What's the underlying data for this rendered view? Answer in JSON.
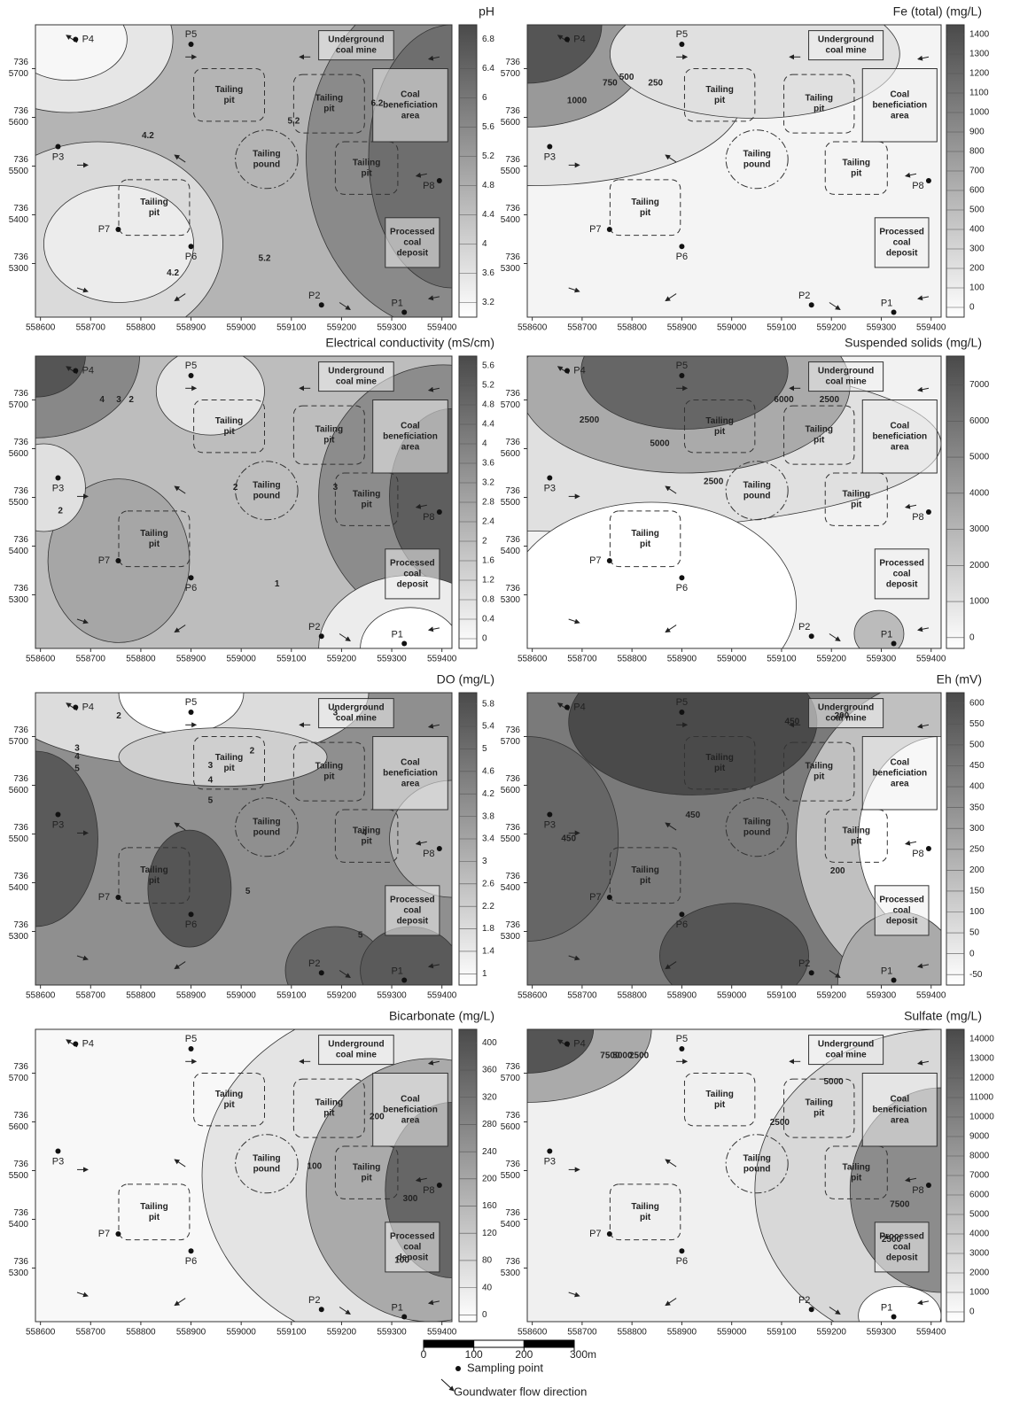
{
  "chart_data": {
    "type": "contour",
    "xlim": [
      558590,
      559420
    ],
    "xticks": [
      558600,
      558700,
      558800,
      558900,
      559000,
      559100,
      559200,
      559300,
      559400
    ],
    "ylim": [
      7365190,
      7365790
    ],
    "yticks": [
      {
        "value": 7365300,
        "label": [
          "736",
          "5300"
        ]
      },
      {
        "value": 7365400,
        "label": [
          "736",
          "5400"
        ]
      },
      {
        "value": 7365500,
        "label": [
          "736",
          "5500"
        ]
      },
      {
        "value": 7365600,
        "label": [
          "736",
          "5600"
        ]
      },
      {
        "value": 7365700,
        "label": [
          "736",
          "5700"
        ]
      }
    ],
    "sampling_points": [
      {
        "name": "P1",
        "x": 559325,
        "y": 7365200
      },
      {
        "name": "P2",
        "x": 559160,
        "y": 7365215
      },
      {
        "name": "P3",
        "x": 558635,
        "y": 7365540
      },
      {
        "name": "P4",
        "x": 558670,
        "y": 7365760
      },
      {
        "name": "P5",
        "x": 558900,
        "y": 7365750
      },
      {
        "name": "P6",
        "x": 558900,
        "y": 7365335
      },
      {
        "name": "P7",
        "x": 558755,
        "y": 7365370
      },
      {
        "name": "P8",
        "x": 559395,
        "y": 7365470
      }
    ],
    "facilities": [
      {
        "label": [
          "Underground",
          "coal mine"
        ]
      },
      {
        "label": [
          "Coal",
          "beneficiation",
          "area"
        ]
      },
      {
        "label": [
          "Tailing",
          "pit"
        ]
      },
      {
        "label": [
          "Tailing",
          "pit"
        ]
      },
      {
        "label": [
          "Tailing",
          "pit"
        ]
      },
      {
        "label": [
          "Tailing",
          "pit"
        ]
      },
      {
        "label": [
          "Tailing",
          "pound"
        ]
      },
      {
        "label": [
          "Processed",
          "coal",
          "deposit"
        ]
      }
    ],
    "panels": [
      {
        "title": "pH",
        "colorbar_lim": [
          3,
          7
        ],
        "colorbar_ticks": [
          3.2,
          3.6,
          4,
          4.4,
          4.8,
          5.2,
          5.6,
          6,
          6.4,
          6.8
        ],
        "contour_labels": [
          4.2,
          4.2,
          5.2,
          6.2,
          5.2
        ]
      },
      {
        "title": "Fe (total) (mg/L)",
        "colorbar_lim": [
          -50,
          1450
        ],
        "colorbar_ticks": [
          0,
          100,
          200,
          300,
          400,
          500,
          600,
          700,
          800,
          900,
          1000,
          1100,
          1200,
          1300,
          1400
        ],
        "contour_labels": [
          1000,
          750,
          500,
          250
        ]
      },
      {
        "title": "Electrical conductivity (mS/cm)",
        "colorbar_lim": [
          -0.2,
          5.8
        ],
        "colorbar_ticks": [
          0,
          0.4,
          0.8,
          1.2,
          1.6,
          2,
          2.4,
          2.8,
          3.2,
          3.6,
          4,
          4.4,
          4.8,
          5.2,
          5.6
        ],
        "contour_labels": [
          4,
          3,
          2,
          2,
          3,
          2,
          1
        ]
      },
      {
        "title": "Suspended solids (mg/L)",
        "colorbar_lim": [
          -300,
          7800
        ],
        "colorbar_ticks": [
          0,
          1000,
          2000,
          3000,
          4000,
          5000,
          6000,
          7000
        ],
        "contour_labels": [
          2500,
          5000,
          2500,
          6000,
          2500
        ]
      },
      {
        "title": "DO (mg/L)",
        "colorbar_lim": [
          0.8,
          6
        ],
        "colorbar_ticks": [
          1,
          1.4,
          1.8,
          2.2,
          2.6,
          3,
          3.4,
          3.8,
          4.2,
          4.6,
          5,
          5.4,
          5.8
        ],
        "contour_labels": [
          2,
          3,
          4,
          5,
          2,
          3,
          4,
          5,
          3,
          4,
          5,
          5
        ]
      },
      {
        "title": "Eh (mV)",
        "colorbar_lim": [
          -75,
          625
        ],
        "colorbar_ticks": [
          -50,
          0,
          50,
          100,
          150,
          200,
          250,
          300,
          350,
          400,
          450,
          500,
          550,
          600
        ],
        "contour_labels": [
          450,
          450,
          450,
          200,
          200
        ]
      },
      {
        "title": "Bicarbonate (mg/L)",
        "colorbar_lim": [
          -10,
          420
        ],
        "colorbar_ticks": [
          0,
          40,
          80,
          120,
          160,
          200,
          240,
          280,
          320,
          360,
          400
        ],
        "contour_labels": [
          200,
          100,
          300,
          100
        ]
      },
      {
        "title": "Sulfate (mg/L)",
        "colorbar_lim": [
          -500,
          14500
        ],
        "colorbar_ticks": [
          0,
          1000,
          2000,
          3000,
          4000,
          5000,
          6000,
          7000,
          8000,
          9000,
          10000,
          11000,
          12000,
          13000,
          14000
        ],
        "contour_labels": [
          7500,
          5000,
          2500,
          5000,
          2500,
          7500,
          2500
        ]
      }
    ],
    "scale_bar": {
      "ticks": [
        0,
        100,
        200,
        {
          "value": 300,
          "label": "300m"
        }
      ]
    },
    "legend": {
      "point": "Sampling point",
      "arrow": "Goundwater flow direction"
    }
  }
}
